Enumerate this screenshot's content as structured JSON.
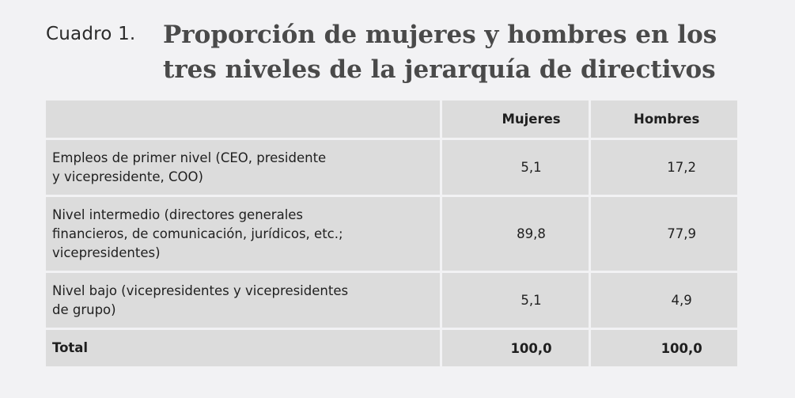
{
  "caption": {
    "label": "Cuadro 1.",
    "title": "Proporción de mujeres y hombres en los tres niveles de la jerarquía de directivos"
  },
  "table": {
    "headers": [
      "",
      "Mujeres",
      "Hombres"
    ],
    "rows": [
      {
        "label_lines": [
          "Empleos de primer nivel (CEO, presidente",
          "y vicepresidente, COO)"
        ],
        "mujeres": "5,1",
        "hombres": "17,2"
      },
      {
        "label_lines": [
          "Nivel intermedio (directores generales",
          "financieros, de comunicación, jurídicos, etc.;",
          "vicepresidentes)"
        ],
        "mujeres": "89,8",
        "hombres": "77,9"
      },
      {
        "label_lines": [
          "Nivel bajo (vicepresidentes y vicepresidentes",
          "de grupo)"
        ],
        "mujeres": "5,1",
        "hombres": "4,9"
      }
    ],
    "total": {
      "label": "Total",
      "mujeres": "100,0",
      "hombres": "100,0"
    }
  }
}
